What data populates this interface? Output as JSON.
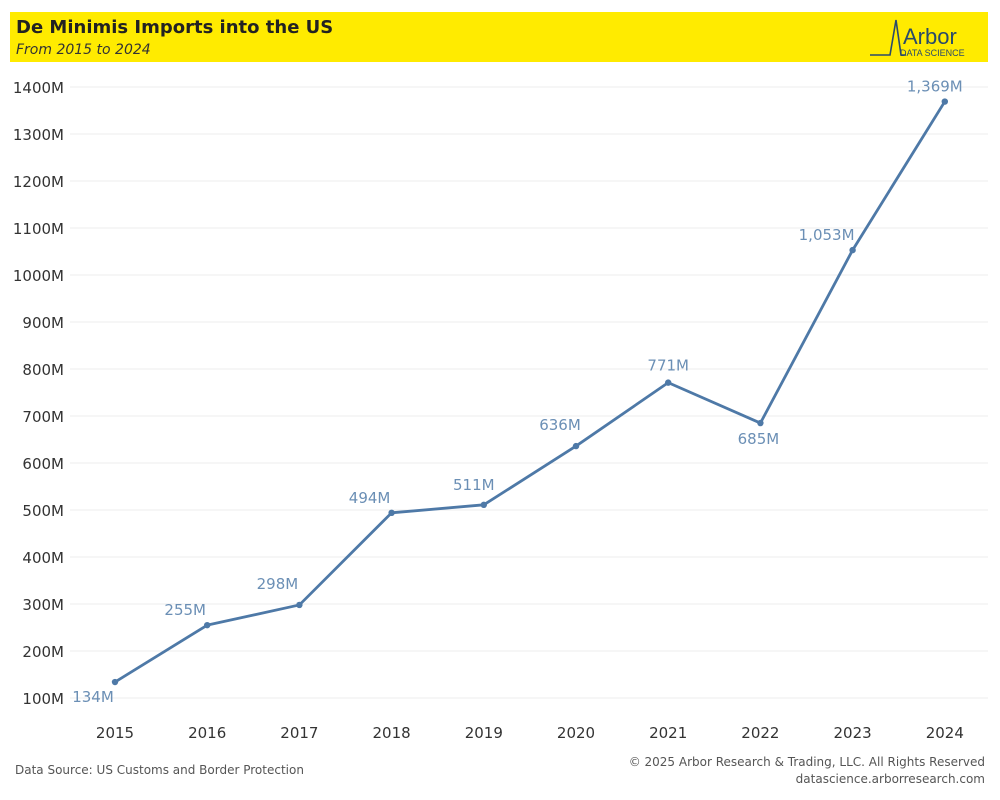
{
  "header": {
    "title": "De Minimis Imports into the US",
    "subtitle": "From 2015 to 2024",
    "logo_text": "Arbor",
    "logo_subtext": "DATA SCIENCE"
  },
  "footer": {
    "source": "Data Source: US Customs and Border Protection",
    "copyright": "© 2025 Arbor Research & Trading, LLC. All Rights Reserved",
    "website": "datascience.arborresearch.com"
  },
  "colors": {
    "line": "#4e79a7",
    "label": "#6b8fb5",
    "header_bg": "#ffeb00"
  },
  "chart_data": {
    "type": "line",
    "title": "De Minimis Imports into the US",
    "subtitle": "From 2015 to 2024",
    "categories": [
      "2015",
      "2016",
      "2017",
      "2018",
      "2019",
      "2020",
      "2021",
      "2022",
      "2023",
      "2024"
    ],
    "series": [
      {
        "values": [
          134,
          255,
          298,
          494,
          511,
          636,
          771,
          685,
          1053,
          1369
        ],
        "labels": [
          "134M",
          "255M",
          "298M",
          "494M",
          "511M",
          "636M",
          "771M",
          "685M",
          "1,053M",
          "1,369M"
        ]
      }
    ],
    "ylim": [
      100,
      1400
    ],
    "yticks": [
      100,
      200,
      300,
      400,
      500,
      600,
      700,
      800,
      900,
      1000,
      1100,
      1200,
      1300,
      1400
    ],
    "ytick_labels": [
      "100M",
      "200M",
      "300M",
      "400M",
      "500M",
      "600M",
      "700M",
      "800M",
      "900M",
      "1000M",
      "1100M",
      "1200M",
      "1300M",
      "1400M"
    ],
    "grid": true,
    "legend": "none"
  }
}
